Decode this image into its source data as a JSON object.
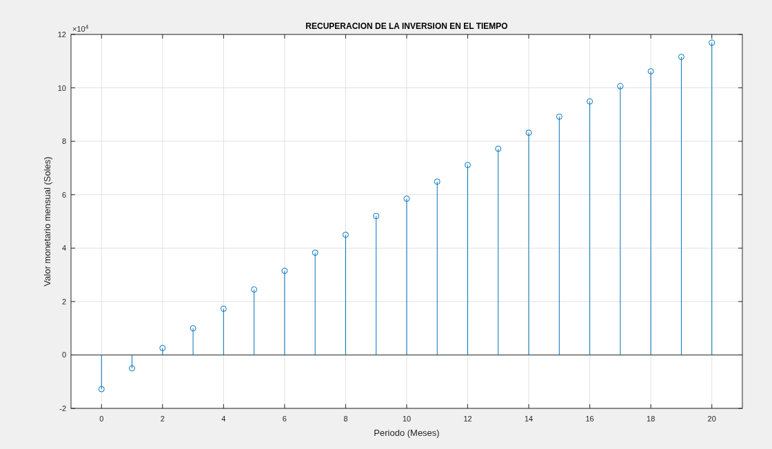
{
  "chart_data": {
    "type": "lollipop",
    "title": "RECUPERACION DE LA INVERSION EN EL TIEMPO",
    "xlabel": "Periodo (Meses)",
    "ylabel": "Valor monetario mensual (Soles)",
    "annotations": [
      "×10$^{4}$"
    ],
    "x": [
      0,
      1,
      2,
      3,
      4,
      5,
      6,
      7,
      8,
      9,
      10,
      11,
      12,
      13,
      14,
      15,
      16,
      17,
      18,
      19,
      20
    ],
    "series": [
      {
        "color": "#0072bd",
        "values": [
          -1.28,
          -0.5,
          0.26,
          1.0,
          1.73,
          2.45,
          3.15,
          3.83,
          4.5,
          5.2,
          5.85,
          6.49,
          7.11,
          7.72,
          8.32,
          8.92,
          9.49,
          10.06,
          10.62,
          11.16,
          11.69
        ]
      }
    ],
    "xlim": [
      -1,
      21
    ],
    "xticks": [
      0,
      2,
      4,
      6,
      8,
      10,
      12,
      14,
      16,
      18,
      20
    ],
    "ylim": [
      -2,
      12
    ],
    "yticks": [
      -2,
      0,
      2,
      4,
      6,
      8,
      10,
      12
    ],
    "ref_lines": [
      {
        "axis": "y",
        "value": 0,
        "color": "#262626"
      }
    ],
    "grid": true,
    "marker": "circle",
    "line_style": "solid"
  }
}
